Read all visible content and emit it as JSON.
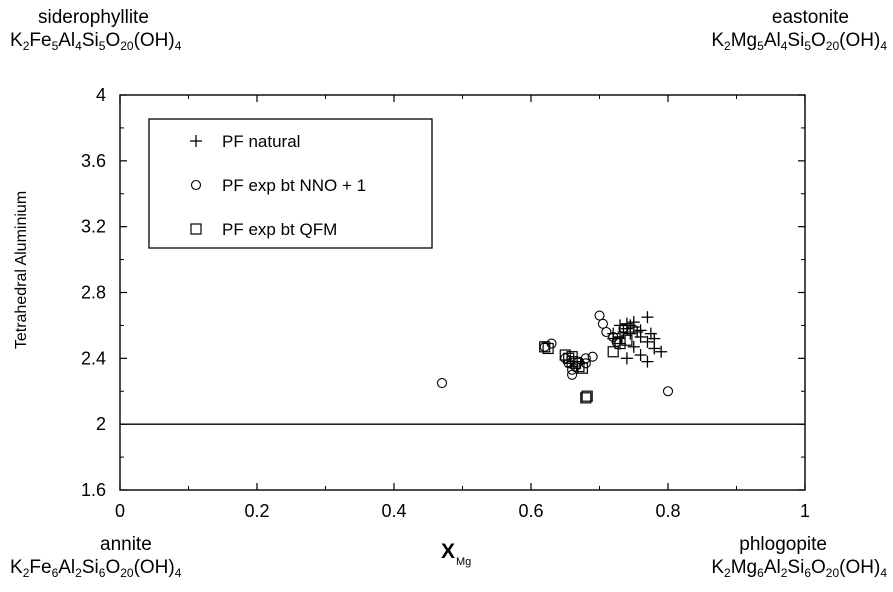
{
  "corners": {
    "top_left": {
      "name": "siderophyllite",
      "formula": [
        "K",
        "2",
        "Fe",
        "5",
        "Al",
        "4",
        "Si",
        "5",
        "O",
        "20",
        "(OH)",
        "4"
      ]
    },
    "top_right": {
      "name": "eastonite",
      "formula": [
        "K",
        "2",
        "Mg",
        "5",
        "Al",
        "4",
        "Si",
        "5",
        "O",
        "20",
        "(OH)",
        "4"
      ]
    },
    "bottom_left": {
      "name": "annite",
      "formula": [
        "K",
        "2",
        "Fe",
        "6",
        "Al",
        "2",
        "Si",
        "6",
        "O",
        "20",
        "(OH)",
        "4"
      ]
    },
    "bottom_right": {
      "name": "phlogopite",
      "formula": [
        "K",
        "2",
        "Mg",
        "6",
        "Al",
        "2",
        "Si",
        "6",
        "O",
        "20",
        "(OH)",
        "4"
      ]
    }
  },
  "chart_data": {
    "type": "scatter",
    "xlabel_main": "X",
    "xlabel_sub": "Mg",
    "ylabel": "Tetrahedral Aluminium",
    "xlim": [
      0,
      1
    ],
    "ylim": [
      1.6,
      4
    ],
    "xticks": [
      0,
      0.2,
      0.4,
      0.6,
      0.8,
      1
    ],
    "xtick_labels": [
      "0",
      "0.2",
      "0.4",
      "0.6",
      "0.8",
      "1"
    ],
    "yticks": [
      1.6,
      2,
      2.4,
      2.8,
      3.2,
      3.6,
      4
    ],
    "ytick_labels": [
      "1.6",
      "2",
      "2.4",
      "2.8",
      "3.2",
      "3.6",
      "4"
    ],
    "grid": false,
    "legend_position": "top-left",
    "reference_line_y": 2,
    "series": [
      {
        "name": "PF natural",
        "marker": "plus",
        "points": [
          [
            0.73,
            2.6
          ],
          [
            0.74,
            2.61
          ],
          [
            0.745,
            2.6
          ],
          [
            0.75,
            2.59
          ],
          [
            0.74,
            2.58
          ],
          [
            0.735,
            2.56
          ],
          [
            0.73,
            2.53
          ],
          [
            0.72,
            2.52
          ],
          [
            0.745,
            2.55
          ],
          [
            0.755,
            2.56
          ],
          [
            0.76,
            2.53
          ],
          [
            0.77,
            2.5
          ],
          [
            0.775,
            2.55
          ],
          [
            0.78,
            2.52
          ],
          [
            0.77,
            2.65
          ],
          [
            0.78,
            2.46
          ],
          [
            0.79,
            2.44
          ],
          [
            0.77,
            2.38
          ],
          [
            0.74,
            2.4
          ],
          [
            0.76,
            2.42
          ],
          [
            0.75,
            2.47
          ],
          [
            0.72,
            2.55
          ],
          [
            0.73,
            2.49
          ],
          [
            0.75,
            2.62
          ],
          [
            0.76,
            2.57
          ]
        ]
      },
      {
        "name": "PF exp bt NNO + 1",
        "marker": "circle",
        "points": [
          [
            0.47,
            2.25
          ],
          [
            0.7,
            2.66
          ],
          [
            0.705,
            2.61
          ],
          [
            0.71,
            2.56
          ],
          [
            0.63,
            2.49
          ],
          [
            0.62,
            2.47
          ],
          [
            0.65,
            2.4
          ],
          [
            0.655,
            2.37
          ],
          [
            0.66,
            2.33
          ],
          [
            0.66,
            2.3
          ],
          [
            0.665,
            2.35
          ],
          [
            0.67,
            2.38
          ],
          [
            0.68,
            2.4
          ],
          [
            0.68,
            2.37
          ],
          [
            0.72,
            2.53
          ],
          [
            0.725,
            2.5
          ],
          [
            0.8,
            2.2
          ],
          [
            0.735,
            2.58
          ],
          [
            0.69,
            2.41
          ]
        ]
      },
      {
        "name": "PF exp bt QFM",
        "marker": "square",
        "points": [
          [
            0.62,
            2.47
          ],
          [
            0.625,
            2.46
          ],
          [
            0.65,
            2.42
          ],
          [
            0.655,
            2.4
          ],
          [
            0.66,
            2.38
          ],
          [
            0.66,
            2.41
          ],
          [
            0.665,
            2.37
          ],
          [
            0.67,
            2.35
          ],
          [
            0.675,
            2.34
          ],
          [
            0.68,
            2.16
          ],
          [
            0.682,
            2.17
          ],
          [
            0.72,
            2.44
          ],
          [
            0.73,
            2.49
          ],
          [
            0.74,
            2.51
          ]
        ]
      }
    ]
  }
}
